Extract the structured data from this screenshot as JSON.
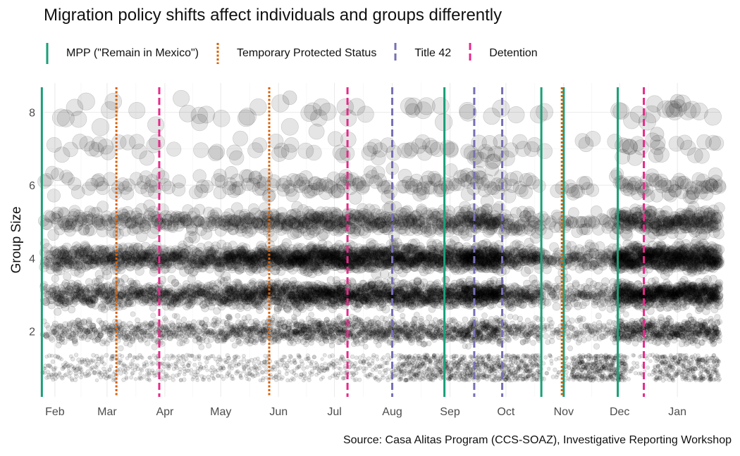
{
  "chart_data": {
    "type": "scatter",
    "title": "Migration policy shifts affect individuals and groups differently",
    "ylabel": "Group Size",
    "xlabel": "",
    "source": "Source: Casa Alitas Program (CCS-SOAZ), Investigative Reporting Workshop",
    "x_axis": {
      "type": "date",
      "range": [
        "2019-01-26",
        "2020-01-24"
      ],
      "ticks": [
        {
          "date": "2019-02-01",
          "label": "Feb"
        },
        {
          "date": "2019-03-01",
          "label": "Mar"
        },
        {
          "date": "2019-04-01",
          "label": "Apr"
        },
        {
          "date": "2019-05-01",
          "label": "May"
        },
        {
          "date": "2019-06-01",
          "label": "Jun"
        },
        {
          "date": "2019-07-01",
          "label": "Jul"
        },
        {
          "date": "2019-08-01",
          "label": "Aug"
        },
        {
          "date": "2019-09-01",
          "label": "Sep"
        },
        {
          "date": "2019-10-01",
          "label": "Oct"
        },
        {
          "date": "2019-11-01",
          "label": "Nov"
        },
        {
          "date": "2019-12-01",
          "label": "Dec"
        },
        {
          "date": "2020-01-01",
          "label": "Jan"
        }
      ]
    },
    "y_axis": {
      "range": [
        0.2,
        8.8
      ],
      "ticks": [
        {
          "value": 2,
          "label": "2"
        },
        {
          "value": 4,
          "label": "4"
        },
        {
          "value": 6,
          "label": "6"
        },
        {
          "value": 8,
          "label": "8"
        }
      ]
    },
    "grid": true,
    "legend_position": "top",
    "policy_series": [
      {
        "name": "MPP (\"Remain in Mexico\")",
        "color": "#1b9e77",
        "linetype": "solid",
        "dates": [
          "2019-01-25",
          "2019-08-29",
          "2019-10-20",
          "2019-11-01",
          "2019-11-30"
        ]
      },
      {
        "name": "Temporary Protected Status",
        "color": "#d95f02",
        "linetype": "dotted",
        "dates": [
          "2019-03-06",
          "2019-05-27",
          "2019-10-31"
        ]
      },
      {
        "name": "Title 42",
        "color": "#7570b3",
        "linetype": "dashed",
        "dates": [
          "2019-08-01",
          "2019-09-14",
          "2019-09-29"
        ]
      },
      {
        "name": "Detention",
        "color": "#e7298a",
        "linetype": "dashed",
        "dates": [
          "2019-03-29",
          "2019-07-08",
          "2019-12-14"
        ]
      }
    ],
    "scatter": {
      "point_color": "#000000",
      "note": "One jittered circle per arriving group; point size grows with group size.",
      "group_sizes": [
        1,
        2,
        3,
        4,
        5,
        6,
        7,
        8
      ],
      "labeled_outliers": [
        {
          "date": "2019-06-07",
          "size": 8.4
        },
        {
          "date": "2019-08-12",
          "size": 8.05
        },
        {
          "date": "2020-01-01",
          "size": 8.3
        },
        {
          "date": "2019-12-21",
          "size": 7.4
        },
        {
          "date": "2019-09-28",
          "size": 7.2
        }
      ]
    }
  }
}
